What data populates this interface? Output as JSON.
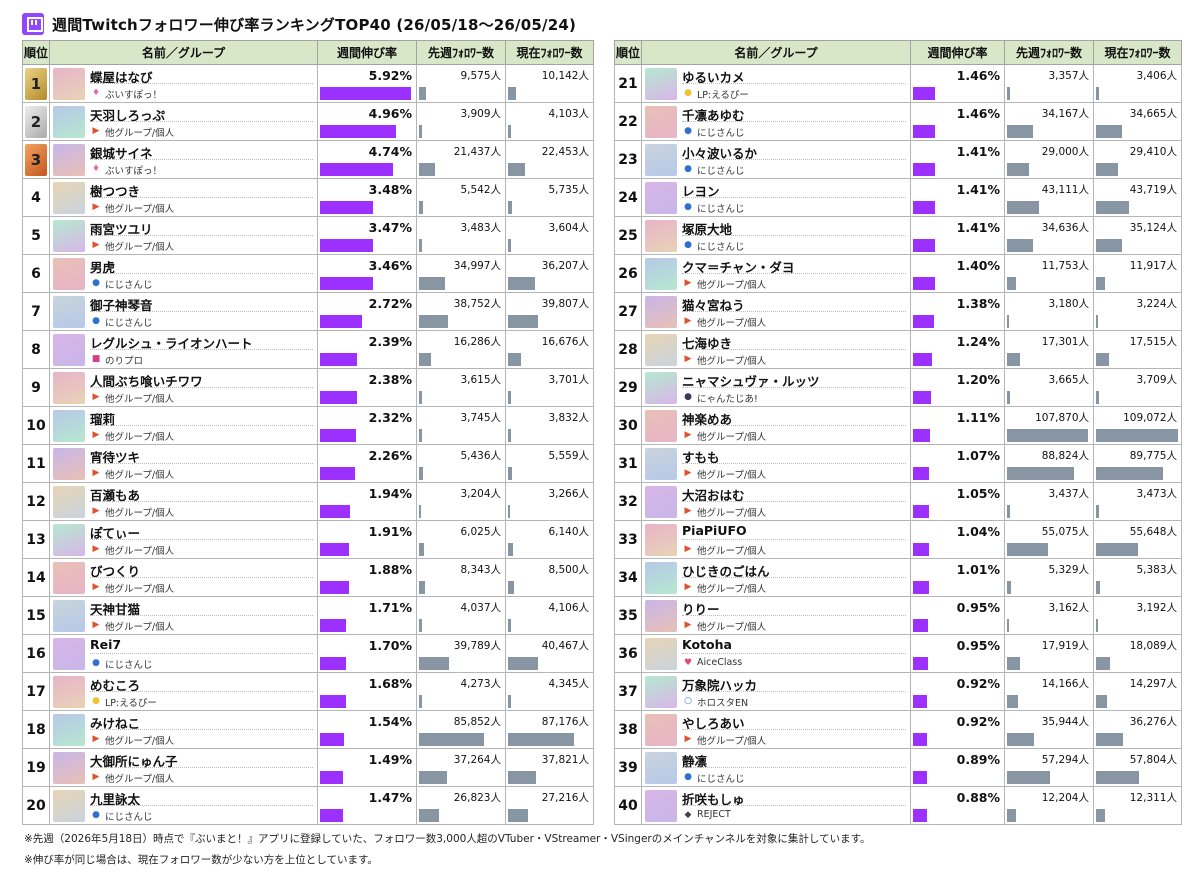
{
  "header": {
    "title": "週間Twitchフォロワー伸び率ランキングTOP40 (26/05/18〜26/05/24)",
    "columns": [
      "順位",
      "名前／グループ",
      "週間伸び率",
      "先週ﾌｫﾛﾜｰ数",
      "現在ﾌｫﾛﾜｰ数"
    ]
  },
  "colors": {
    "rate_bar": "#9b30ff",
    "follower_bar": "#8796a2",
    "header_bg": "#d7e7c8",
    "twitch": "#9146ff"
  },
  "chart_data": {
    "type": "table",
    "rows": [
      {
        "rank": "1",
        "name": "蝶屋はなび",
        "group": "ぶいすぽっ！",
        "rate": "5.92%",
        "rate_value": 5.92,
        "prev": "9,575人",
        "prev_value": 9575,
        "curr": "10,142人",
        "curr_value": 10142
      },
      {
        "rank": "2",
        "name": "天羽しろっぷ",
        "group": "他グループ/個人",
        "rate": "4.96%",
        "rate_value": 4.96,
        "prev": "3,909人",
        "prev_value": 3909,
        "curr": "4,103人",
        "curr_value": 4103
      },
      {
        "rank": "3",
        "name": "銀城サイネ",
        "group": "ぶいすぽっ！",
        "rate": "4.74%",
        "rate_value": 4.74,
        "prev": "21,437人",
        "prev_value": 21437,
        "curr": "22,453人",
        "curr_value": 22453
      },
      {
        "rank": "4",
        "name": "樹つつき",
        "group": "他グループ/個人",
        "rate": "3.48%",
        "rate_value": 3.48,
        "prev": "5,542人",
        "prev_value": 5542,
        "curr": "5,735人",
        "curr_value": 5735
      },
      {
        "rank": "5",
        "name": "雨宮ツユリ",
        "group": "他グループ/個人",
        "rate": "3.47%",
        "rate_value": 3.47,
        "prev": "3,483人",
        "prev_value": 3483,
        "curr": "3,604人",
        "curr_value": 3604
      },
      {
        "rank": "6",
        "name": "男虎",
        "group": "にじさんじ",
        "rate": "3.46%",
        "rate_value": 3.46,
        "prev": "34,997人",
        "prev_value": 34997,
        "curr": "36,207人",
        "curr_value": 36207
      },
      {
        "rank": "7",
        "name": "御子神琴音",
        "group": "にじさんじ",
        "rate": "2.72%",
        "rate_value": 2.72,
        "prev": "38,752人",
        "prev_value": 38752,
        "curr": "39,807人",
        "curr_value": 39807
      },
      {
        "rank": "8",
        "name": "レグルシュ・ライオンハート",
        "group": "のりプロ",
        "rate": "2.39%",
        "rate_value": 2.39,
        "prev": "16,286人",
        "prev_value": 16286,
        "curr": "16,676人",
        "curr_value": 16676
      },
      {
        "rank": "9",
        "name": "人間ぶち喰いチワワ",
        "group": "他グループ/個人",
        "rate": "2.38%",
        "rate_value": 2.38,
        "prev": "3,615人",
        "prev_value": 3615,
        "curr": "3,701人",
        "curr_value": 3701
      },
      {
        "rank": "10",
        "name": "瑠莉",
        "group": "他グループ/個人",
        "rate": "2.32%",
        "rate_value": 2.32,
        "prev": "3,745人",
        "prev_value": 3745,
        "curr": "3,832人",
        "curr_value": 3832
      },
      {
        "rank": "11",
        "name": "宵待ツキ",
        "group": "他グループ/個人",
        "rate": "2.26%",
        "rate_value": 2.26,
        "prev": "5,436人",
        "prev_value": 5436,
        "curr": "5,559人",
        "curr_value": 5559
      },
      {
        "rank": "12",
        "name": "百瀬もあ",
        "group": "他グループ/個人",
        "rate": "1.94%",
        "rate_value": 1.94,
        "prev": "3,204人",
        "prev_value": 3204,
        "curr": "3,266人",
        "curr_value": 3266
      },
      {
        "rank": "13",
        "name": "ぽてぃー",
        "group": "他グループ/個人",
        "rate": "1.91%",
        "rate_value": 1.91,
        "prev": "6,025人",
        "prev_value": 6025,
        "curr": "6,140人",
        "curr_value": 6140
      },
      {
        "rank": "14",
        "name": "びつくり",
        "group": "他グループ/個人",
        "rate": "1.88%",
        "rate_value": 1.88,
        "prev": "8,343人",
        "prev_value": 8343,
        "curr": "8,500人",
        "curr_value": 8500
      },
      {
        "rank": "15",
        "name": "天神甘猫",
        "group": "他グループ/個人",
        "rate": "1.71%",
        "rate_value": 1.71,
        "prev": "4,037人",
        "prev_value": 4037,
        "curr": "4,106人",
        "curr_value": 4106
      },
      {
        "rank": "16",
        "name": "Rei7",
        "group": "にじさんじ",
        "rate": "1.70%",
        "rate_value": 1.7,
        "prev": "39,789人",
        "prev_value": 39789,
        "curr": "40,467人",
        "curr_value": 40467
      },
      {
        "rank": "17",
        "name": "めむころ",
        "group": "LP:えるぴー",
        "rate": "1.68%",
        "rate_value": 1.68,
        "prev": "4,273人",
        "prev_value": 4273,
        "curr": "4,345人",
        "curr_value": 4345
      },
      {
        "rank": "18",
        "name": "みけねこ",
        "group": "他グループ/個人",
        "rate": "1.54%",
        "rate_value": 1.54,
        "prev": "85,852人",
        "prev_value": 85852,
        "curr": "87,176人",
        "curr_value": 87176
      },
      {
        "rank": "19",
        "name": "大御所にゅん子",
        "group": "他グループ/個人",
        "rate": "1.49%",
        "rate_value": 1.49,
        "prev": "37,264人",
        "prev_value": 37264,
        "curr": "37,821人",
        "curr_value": 37821
      },
      {
        "rank": "20",
        "name": "九里詠太",
        "group": "にじさんじ",
        "rate": "1.47%",
        "rate_value": 1.47,
        "prev": "26,823人",
        "prev_value": 26823,
        "curr": "27,216人",
        "curr_value": 27216
      },
      {
        "rank": "21",
        "name": "ゆるいカメ",
        "group": "LP:えるぴー",
        "rate": "1.46%",
        "rate_value": 1.46,
        "prev": "3,357人",
        "prev_value": 3357,
        "curr": "3,406人",
        "curr_value": 3406
      },
      {
        "rank": "22",
        "name": "千凛あゆむ",
        "group": "にじさんじ",
        "rate": "1.46%",
        "rate_value": 1.46,
        "prev": "34,167人",
        "prev_value": 34167,
        "curr": "34,665人",
        "curr_value": 34665
      },
      {
        "rank": "23",
        "name": "小々波いるか",
        "group": "にじさんじ",
        "rate": "1.41%",
        "rate_value": 1.41,
        "prev": "29,000人",
        "prev_value": 29000,
        "curr": "29,410人",
        "curr_value": 29410
      },
      {
        "rank": "24",
        "name": "レヨン",
        "group": "にじさんじ",
        "rate": "1.41%",
        "rate_value": 1.41,
        "prev": "43,111人",
        "prev_value": 43111,
        "curr": "43,719人",
        "curr_value": 43719
      },
      {
        "rank": "25",
        "name": "塚原大地",
        "group": "にじさんじ",
        "rate": "1.41%",
        "rate_value": 1.41,
        "prev": "34,636人",
        "prev_value": 34636,
        "curr": "35,124人",
        "curr_value": 35124
      },
      {
        "rank": "26",
        "name": "クマ＝チャン・ダヨ",
        "group": "他グループ/個人",
        "rate": "1.40%",
        "rate_value": 1.4,
        "prev": "11,753人",
        "prev_value": 11753,
        "curr": "11,917人",
        "curr_value": 11917
      },
      {
        "rank": "27",
        "name": "猫々宮ねう",
        "group": "他グループ/個人",
        "rate": "1.38%",
        "rate_value": 1.38,
        "prev": "3,180人",
        "prev_value": 3180,
        "curr": "3,224人",
        "curr_value": 3224
      },
      {
        "rank": "28",
        "name": "七海ゆき",
        "group": "他グループ/個人",
        "rate": "1.24%",
        "rate_value": 1.24,
        "prev": "17,301人",
        "prev_value": 17301,
        "curr": "17,515人",
        "curr_value": 17515
      },
      {
        "rank": "29",
        "name": "ニャマシュヴァ・ルッツ",
        "group": "にゃんたじあ!",
        "rate": "1.20%",
        "rate_value": 1.2,
        "prev": "3,665人",
        "prev_value": 3665,
        "curr": "3,709人",
        "curr_value": 3709
      },
      {
        "rank": "30",
        "name": "神楽めあ",
        "group": "他グループ/個人",
        "rate": "1.11%",
        "rate_value": 1.11,
        "prev": "107,870人",
        "prev_value": 107870,
        "curr": "109,072人",
        "curr_value": 109072
      },
      {
        "rank": "31",
        "name": "すもも",
        "group": "他グループ/個人",
        "rate": "1.07%",
        "rate_value": 1.07,
        "prev": "88,824人",
        "prev_value": 88824,
        "curr": "89,775人",
        "curr_value": 89775
      },
      {
        "rank": "32",
        "name": "大沼おはむ",
        "group": "他グループ/個人",
        "rate": "1.05%",
        "rate_value": 1.05,
        "prev": "3,437人",
        "prev_value": 3437,
        "curr": "3,473人",
        "curr_value": 3473
      },
      {
        "rank": "33",
        "name": "PiaPiUFO",
        "group": "他グループ/個人",
        "rate": "1.04%",
        "rate_value": 1.04,
        "prev": "55,075人",
        "prev_value": 55075,
        "curr": "55,648人",
        "curr_value": 55648
      },
      {
        "rank": "34",
        "name": "ひじきのごはん",
        "group": "他グループ/個人",
        "rate": "1.01%",
        "rate_value": 1.01,
        "prev": "5,329人",
        "prev_value": 5329,
        "curr": "5,383人",
        "curr_value": 5383
      },
      {
        "rank": "35",
        "name": "りりー",
        "group": "他グループ/個人",
        "rate": "0.95%",
        "rate_value": 0.95,
        "prev": "3,162人",
        "prev_value": 3162,
        "curr": "3,192人",
        "curr_value": 3192
      },
      {
        "rank": "36",
        "name": "Kotoha",
        "group": "AiceClass",
        "rate": "0.95%",
        "rate_value": 0.95,
        "prev": "17,919人",
        "prev_value": 17919,
        "curr": "18,089人",
        "curr_value": 18089
      },
      {
        "rank": "37",
        "name": "万象院ハッカ",
        "group": "ホロスタEN",
        "rate": "0.92%",
        "rate_value": 0.92,
        "prev": "14,166人",
        "prev_value": 14166,
        "curr": "14,297人",
        "curr_value": 14297
      },
      {
        "rank": "38",
        "name": "やしろあい",
        "group": "他グループ/個人",
        "rate": "0.92%",
        "rate_value": 0.92,
        "prev": "35,944人",
        "prev_value": 35944,
        "curr": "36,276人",
        "curr_value": 36276
      },
      {
        "rank": "39",
        "name": "静凛",
        "group": "にじさんじ",
        "rate": "0.89%",
        "rate_value": 0.89,
        "prev": "57,294人",
        "prev_value": 57294,
        "curr": "57,804人",
        "curr_value": 57804
      },
      {
        "rank": "40",
        "name": "折咲もしゅ",
        "group": "REJECT",
        "rate": "0.88%",
        "rate_value": 0.88,
        "prev": "12,204人",
        "prev_value": 12204,
        "curr": "12,311人",
        "curr_value": 12311
      }
    ]
  },
  "footnotes": [
    "※先週（2026年5月18日）時点で『ぶいまと！』アプリに登録していた、フォロワー数3,000人超のVTuber・VStreamer・VSingerのメインチャンネルを対象に集計しています。",
    "※伸び率が同じ場合は、現在フォロワー数が少ない方を上位としています。"
  ]
}
